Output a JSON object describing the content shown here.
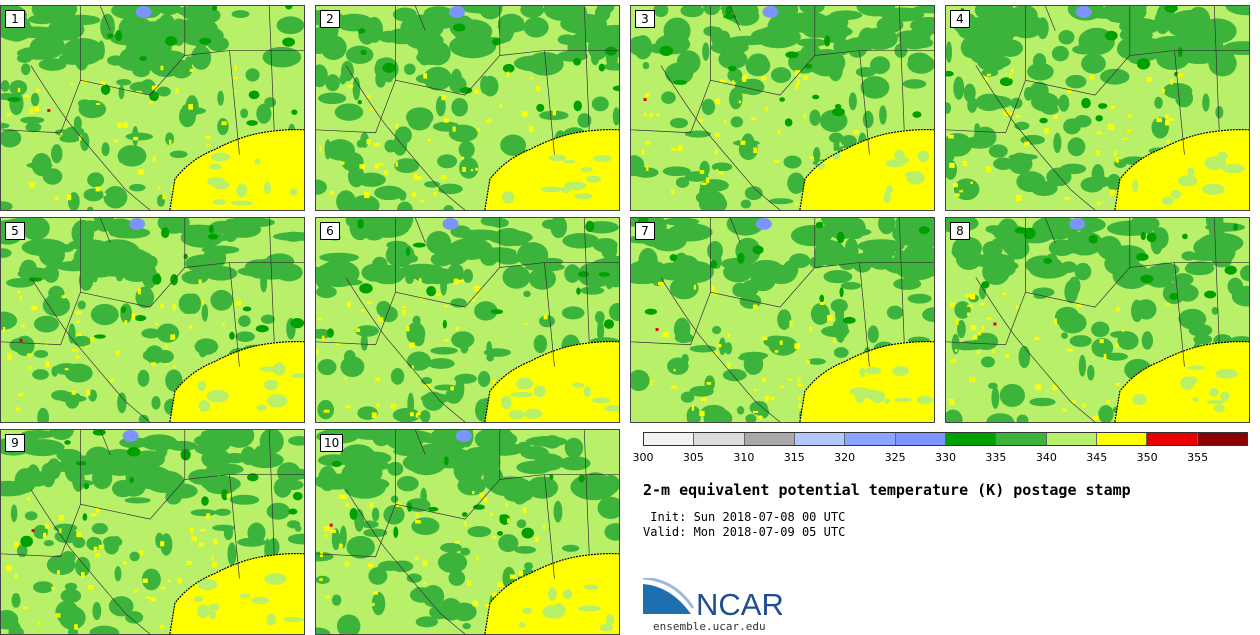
{
  "panels": [
    {
      "label": "1"
    },
    {
      "label": "2"
    },
    {
      "label": "3"
    },
    {
      "label": "4"
    },
    {
      "label": "5"
    },
    {
      "label": "6"
    },
    {
      "label": "7"
    },
    {
      "label": "8"
    },
    {
      "label": "9"
    },
    {
      "label": "10"
    }
  ],
  "colorbar": {
    "ticks": [
      "300",
      "305",
      "310",
      "315",
      "320",
      "325",
      "330",
      "335",
      "340",
      "345",
      "350",
      "355"
    ],
    "colors": [
      "#f2f2f2",
      "#dcdcdc",
      "#a8a8a8",
      "#b3c7ff",
      "#8aa5ff",
      "#7c94ff",
      "#00a000",
      "#3cb43c",
      "#b8f06a",
      "#ffff00",
      "#e60000",
      "#8b0000"
    ]
  },
  "title": "2-m equivalent potential temperature (K) postage stamp",
  "init": " Init: Sun 2018-07-08 00 UTC",
  "valid": "Valid: Mon 2018-07-09 05 UTC",
  "logo": {
    "text": "NCAR",
    "url_text": "ensemble.ucar.edu",
    "color": "#1d4f91"
  },
  "map_colors": {
    "light_green": "#b8f06a",
    "green": "#3cb43c",
    "dark_green": "#00a000",
    "yellow": "#ffff00",
    "blue": "#7c94ff",
    "red": "#e60000"
  }
}
